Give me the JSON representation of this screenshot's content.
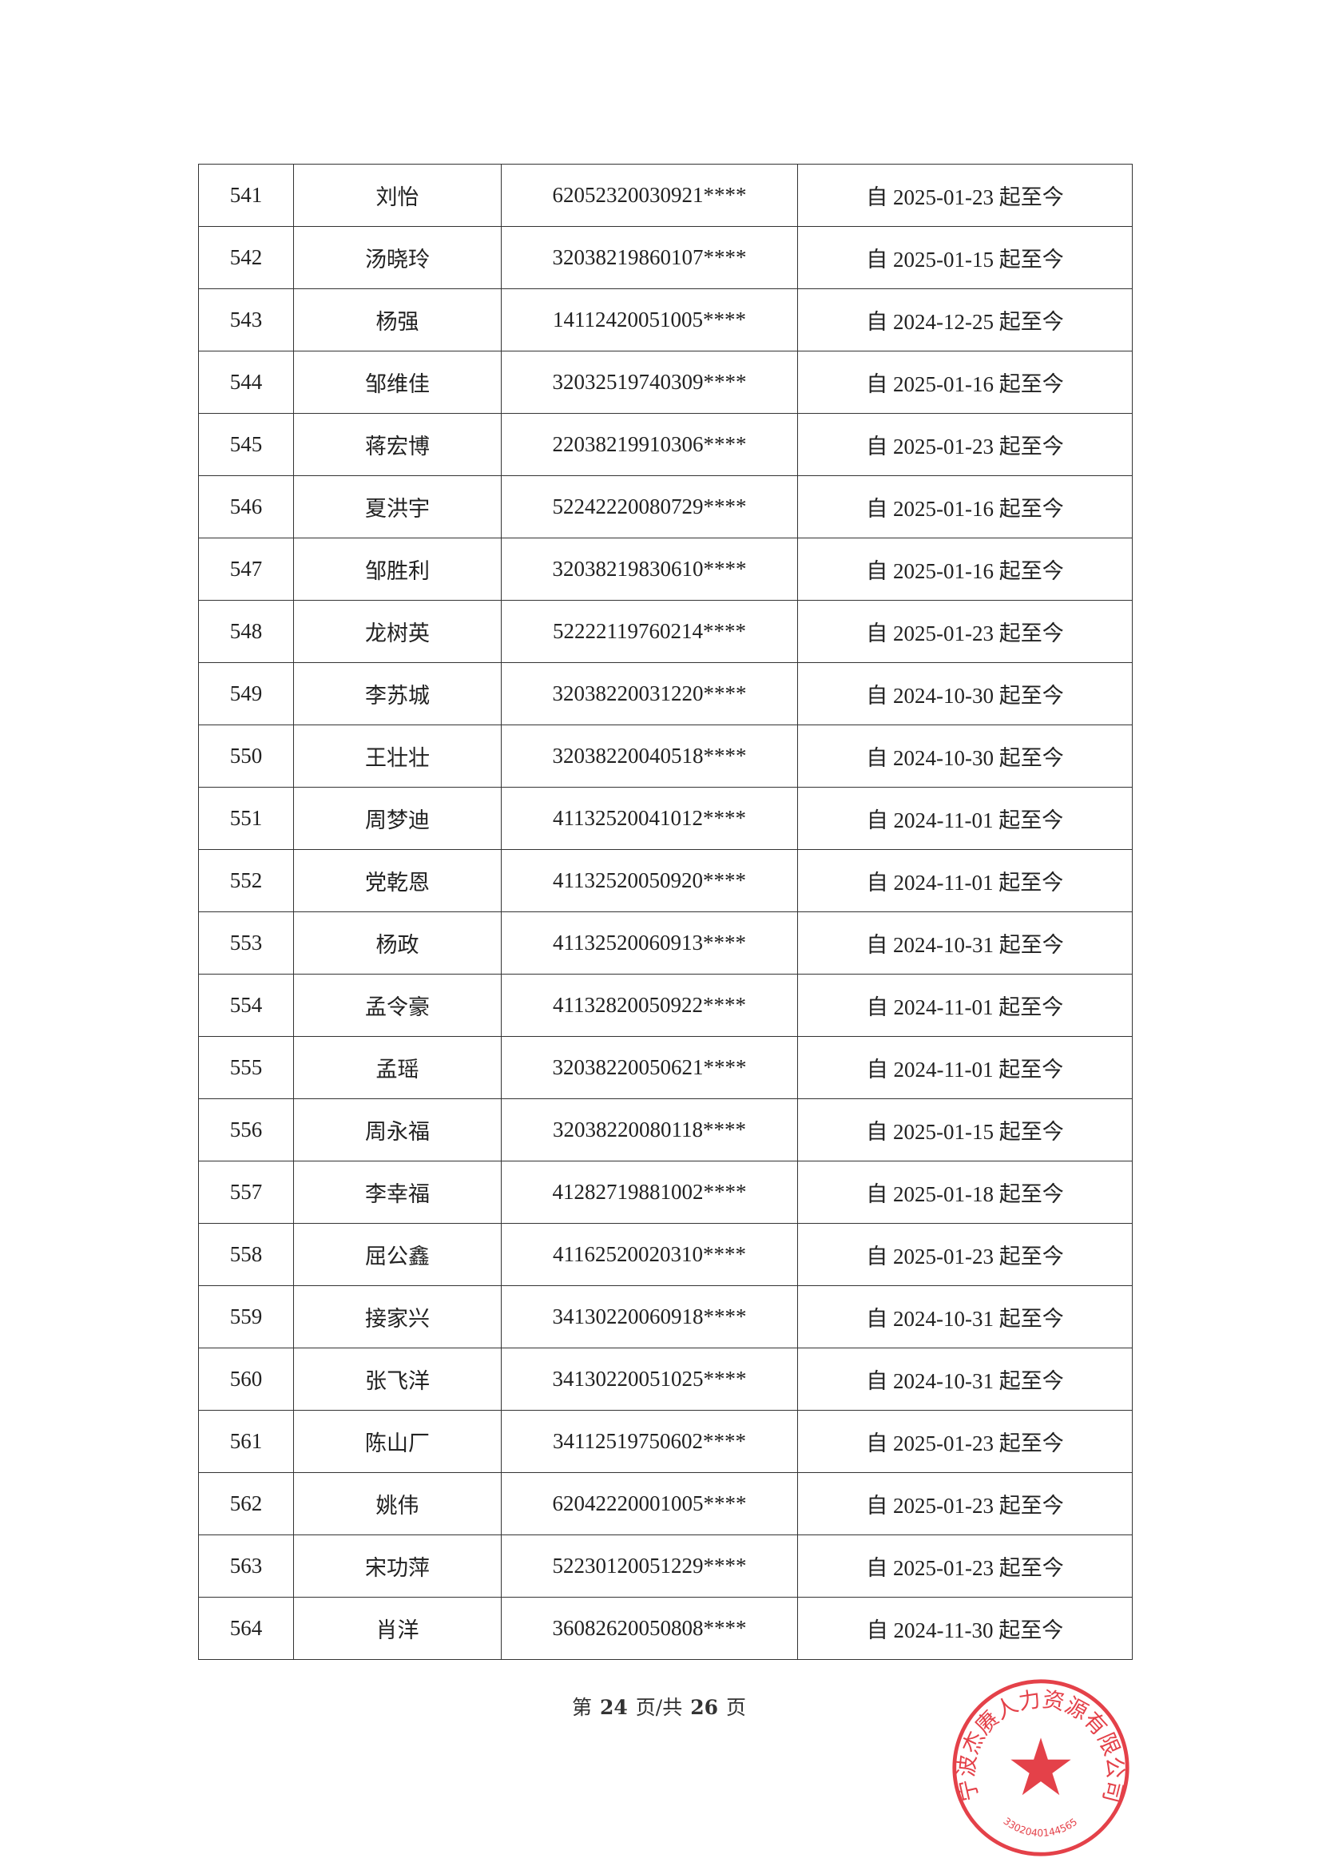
{
  "table": {
    "rows": [
      {
        "no": "541",
        "name": "刘怡",
        "id": "62052320030921****",
        "period": "自 2025-01-23 起至今"
      },
      {
        "no": "542",
        "name": "汤晓玲",
        "id": "32038219860107****",
        "period": "自 2025-01-15 起至今"
      },
      {
        "no": "543",
        "name": "杨强",
        "id": "14112420051005****",
        "period": "自 2024-12-25 起至今"
      },
      {
        "no": "544",
        "name": "邹维佳",
        "id": "32032519740309****",
        "period": "自 2025-01-16 起至今"
      },
      {
        "no": "545",
        "name": "蒋宏博",
        "id": "22038219910306****",
        "period": "自 2025-01-23 起至今"
      },
      {
        "no": "546",
        "name": "夏洪宇",
        "id": "52242220080729****",
        "period": "自 2025-01-16 起至今"
      },
      {
        "no": "547",
        "name": "邹胜利",
        "id": "32038219830610****",
        "period": "自 2025-01-16 起至今"
      },
      {
        "no": "548",
        "name": "龙树英",
        "id": "52222119760214****",
        "period": "自 2025-01-23 起至今"
      },
      {
        "no": "549",
        "name": "李苏城",
        "id": "32038220031220****",
        "period": "自 2024-10-30 起至今"
      },
      {
        "no": "550",
        "name": "王壮壮",
        "id": "32038220040518****",
        "period": "自 2024-10-30 起至今"
      },
      {
        "no": "551",
        "name": "周梦迪",
        "id": "41132520041012****",
        "period": "自 2024-11-01 起至今"
      },
      {
        "no": "552",
        "name": "党乾恩",
        "id": "41132520050920****",
        "period": "自 2024-11-01 起至今"
      },
      {
        "no": "553",
        "name": "杨政",
        "id": "41132520060913****",
        "period": "自 2024-10-31 起至今"
      },
      {
        "no": "554",
        "name": "孟令豪",
        "id": "41132820050922****",
        "period": "自 2024-11-01 起至今"
      },
      {
        "no": "555",
        "name": "孟瑶",
        "id": "32038220050621****",
        "period": "自 2024-11-01 起至今"
      },
      {
        "no": "556",
        "name": "周永福",
        "id": "32038220080118****",
        "period": "自 2025-01-15 起至今"
      },
      {
        "no": "557",
        "name": "李幸福",
        "id": "41282719881002****",
        "period": "自 2025-01-18 起至今"
      },
      {
        "no": "558",
        "name": "屈公鑫",
        "id": "41162520020310****",
        "period": "自 2025-01-23 起至今"
      },
      {
        "no": "559",
        "name": "接家兴",
        "id": "34130220060918****",
        "period": "自 2024-10-31 起至今"
      },
      {
        "no": "560",
        "name": "张飞洋",
        "id": "34130220051025****",
        "period": "自 2024-10-31 起至今"
      },
      {
        "no": "561",
        "name": "陈山厂",
        "id": "34112519750602****",
        "period": "自 2025-01-23 起至今"
      },
      {
        "no": "562",
        "name": "姚伟",
        "id": "62042220001005****",
        "period": "自 2025-01-23 起至今"
      },
      {
        "no": "563",
        "name": "宋功萍",
        "id": "52230120051229****",
        "period": "自 2025-01-23 起至今"
      },
      {
        "no": "564",
        "name": "肖洋",
        "id": "36082620050808****",
        "period": "自 2024-11-30 起至今"
      }
    ]
  },
  "footer": {
    "prefix": "第",
    "page": "24",
    "middle": "页/共",
    "total": "26",
    "suffix": "页"
  },
  "seal": {
    "text": "宁波杰赓人力资源有限公司",
    "code": "3302040144565",
    "color": "#e0202a"
  }
}
